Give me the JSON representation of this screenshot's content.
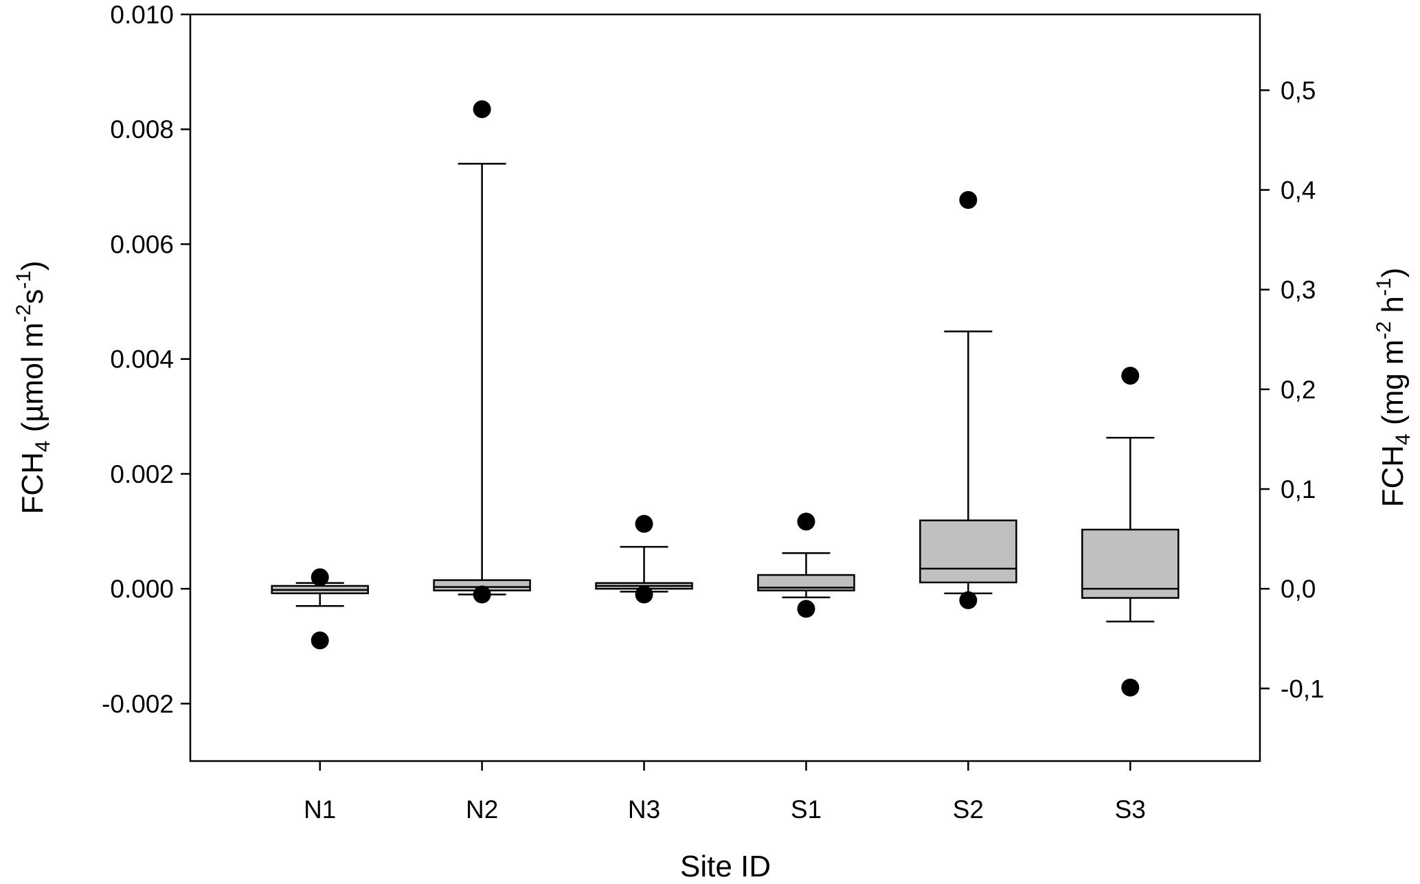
{
  "chart_data": {
    "type": "box",
    "xlabel": "Site ID",
    "ylabel": {
      "main": "FCH",
      "sub": "4",
      "unit": " (µmol m",
      "exp1": "-2",
      "mid": "s",
      "exp2": "-1",
      "end": ")"
    },
    "y2label": {
      "main": "FCH",
      "sub": "4",
      "unit": " (mg m",
      "exp1": "-2",
      "mid": " h",
      "exp2": "-1",
      "end": ")"
    },
    "categories": [
      "N1",
      "N2",
      "N3",
      "S1",
      "S2",
      "S3"
    ],
    "ylim": [
      -0.003,
      0.01
    ],
    "yticks": [
      -0.002,
      0.0,
      0.002,
      0.004,
      0.006,
      0.008,
      0.01
    ],
    "ytick_labels": [
      "-0.002",
      "0.000",
      "0.002",
      "0.004",
      "0.006",
      "0.008",
      "0.010"
    ],
    "y2_per_y": 57.6,
    "y2ticks": [
      -0.1,
      0.0,
      0.1,
      0.2,
      0.3,
      0.4,
      0.5
    ],
    "y2tick_labels": [
      "-0,1",
      "0,0",
      "0,1",
      "0,2",
      "0,3",
      "0,4",
      "0,5"
    ],
    "boxes": [
      {
        "name": "N1",
        "whisker_low": -0.0003,
        "q1": -8e-05,
        "median": -2e-05,
        "q3": 5e-05,
        "whisker_high": 0.0001,
        "outliers": [
          0.0002,
          -0.0009
        ]
      },
      {
        "name": "N2",
        "whisker_low": -0.0001,
        "q1": -3e-05,
        "median": 3e-05,
        "q3": 0.00015,
        "whisker_high": 0.0074,
        "outliers": [
          0.00835,
          -0.0001
        ]
      },
      {
        "name": "N3",
        "whisker_low": -5e-05,
        "q1": 0.0,
        "median": 5e-05,
        "q3": 0.0001,
        "whisker_high": 0.00073,
        "outliers": [
          0.00113,
          -0.0001
        ]
      },
      {
        "name": "S1",
        "whisker_low": -0.00015,
        "q1": -3e-05,
        "median": 2e-05,
        "q3": 0.00024,
        "whisker_high": 0.00062,
        "outliers": [
          0.00117,
          -0.00035
        ]
      },
      {
        "name": "S2",
        "whisker_low": -8e-05,
        "q1": 0.00011,
        "median": 0.00035,
        "q3": 0.00119,
        "whisker_high": 0.00448,
        "outliers": [
          0.00677,
          -0.0002
        ]
      },
      {
        "name": "S3",
        "whisker_low": -0.00057,
        "q1": -0.00016,
        "median": 0.0,
        "q3": 0.00103,
        "whisker_high": 0.00263,
        "outliers": [
          0.00371,
          -0.00172
        ]
      }
    ],
    "box_fill": "#c0c0c0",
    "grid": false,
    "legend": "none"
  }
}
